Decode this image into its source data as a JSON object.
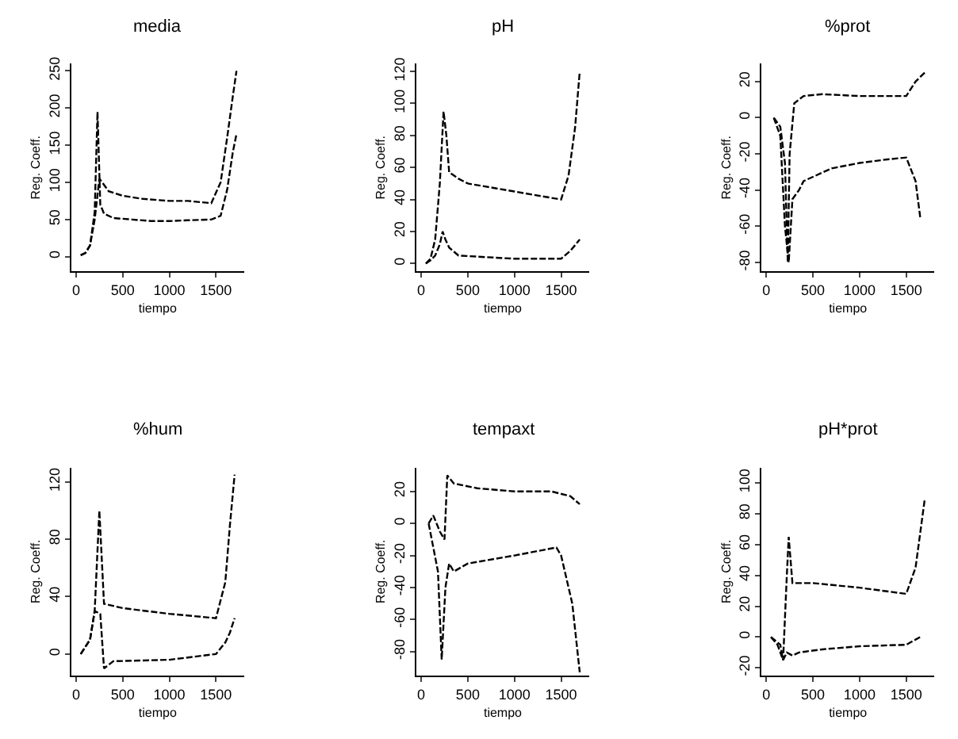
{
  "chart_data": [
    {
      "type": "line",
      "title": "media",
      "xlabel": "tiempo",
      "ylabel": "Reg. Coeff.",
      "line_style": "dashed",
      "xlim": [
        -50,
        1800
      ],
      "xticks": [
        0,
        500,
        1000,
        1500
      ],
      "ylim": [
        -20,
        260
      ],
      "yticks": [
        0,
        50,
        100,
        150,
        200,
        250
      ],
      "series": [
        {
          "color": "#000000",
          "x": [
            50,
            100,
            150,
            200,
            230,
            260,
            300,
            400,
            600,
            800,
            1000,
            1200,
            1450,
            1550,
            1620,
            1680,
            1720
          ],
          "values": [
            2,
            5,
            15,
            60,
            195,
            70,
            58,
            52,
            50,
            48,
            48,
            49,
            50,
            55,
            90,
            140,
            165
          ]
        },
        {
          "color": "#000000",
          "x": [
            50,
            100,
            150,
            200,
            250,
            280,
            350,
            500,
            700,
            1000,
            1200,
            1450,
            1550,
            1620,
            1680,
            1720
          ],
          "values": [
            2,
            5,
            15,
            50,
            105,
            100,
            88,
            82,
            78,
            75,
            75,
            72,
            100,
            160,
            215,
            250
          ]
        }
      ]
    },
    {
      "type": "line",
      "title": "pH",
      "xlabel": "tiempo",
      "ylabel": "Reg. Coeff.",
      "line_style": "dashed",
      "xlim": [
        -50,
        1800
      ],
      "xticks": [
        0,
        500,
        1000,
        1500
      ],
      "ylim": [
        -5,
        125
      ],
      "yticks": [
        0,
        20,
        40,
        60,
        80,
        100,
        120
      ],
      "series": [
        {
          "color": "#000000",
          "x": [
            50,
            100,
            150,
            200,
            240,
            270,
            300,
            400,
            500,
            800,
            1000,
            1300,
            1500,
            1580,
            1650,
            1700
          ],
          "values": [
            0,
            3,
            15,
            50,
            95,
            80,
            57,
            53,
            50,
            47,
            45,
            42,
            40,
            55,
            85,
            120
          ]
        },
        {
          "color": "#000000",
          "x": [
            50,
            100,
            150,
            200,
            230,
            260,
            300,
            400,
            700,
            1000,
            1300,
            1500,
            1600,
            1700
          ],
          "values": [
            0,
            2,
            5,
            12,
            20,
            15,
            10,
            5,
            4,
            3,
            3,
            3,
            8,
            15
          ]
        }
      ]
    },
    {
      "type": "line",
      "title": "%prot",
      "xlabel": "tiempo",
      "ylabel": "Reg. Coeff.",
      "line_style": "dashed",
      "xlim": [
        -50,
        1800
      ],
      "xticks": [
        0,
        500,
        1000,
        1500
      ],
      "ylim": [
        -85,
        30
      ],
      "yticks": [
        -80,
        -60,
        -40,
        -20,
        0,
        20
      ],
      "series": [
        {
          "color": "#000000",
          "x": [
            80,
            150,
            200,
            230,
            250,
            300,
            400,
            600,
            1000,
            1300,
            1500,
            1600,
            1700
          ],
          "values": [
            0,
            -5,
            -25,
            -80,
            -20,
            8,
            12,
            13,
            12,
            12,
            12,
            20,
            25
          ]
        },
        {
          "color": "#000000",
          "x": [
            80,
            150,
            200,
            240,
            280,
            350,
            400,
            700,
            1000,
            1300,
            1500,
            1600,
            1650
          ],
          "values": [
            0,
            -10,
            -60,
            -80,
            -45,
            -40,
            -35,
            -28,
            -25,
            -23,
            -22,
            -35,
            -55
          ]
        }
      ]
    },
    {
      "type": "line",
      "title": "%hum",
      "xlabel": "tiempo",
      "ylabel": "Reg. Coeff.",
      "line_style": "dashed",
      "xlim": [
        -50,
        1800
      ],
      "xticks": [
        0,
        500,
        1000,
        1500
      ],
      "ylim": [
        -15,
        130
      ],
      "yticks": [
        0,
        40,
        80,
        120
      ],
      "series": [
        {
          "color": "#000000",
          "x": [
            50,
            150,
            200,
            250,
            300,
            500,
            1000,
            1500,
            1600,
            1650,
            1700
          ],
          "values": [
            0,
            10,
            30,
            100,
            35,
            32,
            28,
            25,
            50,
            90,
            125
          ]
        },
        {
          "color": "#000000",
          "x": [
            50,
            100,
            150,
            200,
            260,
            300,
            400,
            1000,
            1500,
            1600,
            1650,
            1700
          ],
          "values": [
            0,
            5,
            10,
            30,
            28,
            -10,
            -5,
            -4,
            0,
            8,
            15,
            25
          ]
        }
      ]
    },
    {
      "type": "line",
      "title": "tempaxt",
      "xlabel": "tiempo",
      "ylabel": "Reg. Coeff.",
      "line_style": "dashed",
      "xlim": [
        -50,
        1800
      ],
      "xticks": [
        0,
        500,
        1000,
        1500
      ],
      "ylim": [
        -95,
        35
      ],
      "yticks": [
        -80,
        -60,
        -40,
        -20,
        0,
        20
      ],
      "series": [
        {
          "color": "#000000",
          "x": [
            80,
            130,
            200,
            250,
            280,
            350,
            600,
            1000,
            1400,
            1600,
            1700
          ],
          "values": [
            0,
            5,
            -5,
            -10,
            30,
            25,
            22,
            20,
            20,
            17,
            12
          ]
        },
        {
          "color": "#000000",
          "x": [
            80,
            180,
            220,
            260,
            300,
            350,
            500,
            1000,
            1450,
            1500,
            1620,
            1700
          ],
          "values": [
            0,
            -30,
            -85,
            -40,
            -25,
            -30,
            -25,
            -20,
            -15,
            -20,
            -50,
            -93
          ]
        }
      ]
    },
    {
      "type": "line",
      "title": "pH*prot",
      "xlabel": "tiempo",
      "ylabel": "Reg. Coeff.",
      "line_style": "dashed",
      "xlim": [
        -50,
        1800
      ],
      "xticks": [
        0,
        500,
        1000,
        1500
      ],
      "ylim": [
        -25,
        110
      ],
      "yticks": [
        -20,
        0,
        20,
        40,
        60,
        80,
        100
      ],
      "series": [
        {
          "color": "#000000",
          "x": [
            50,
            150,
            180,
            220,
            240,
            280,
            500,
            1000,
            1500,
            1600,
            1700
          ],
          "values": [
            0,
            -5,
            -15,
            40,
            65,
            35,
            35,
            32,
            28,
            45,
            90
          ]
        },
        {
          "color": "#000000",
          "x": [
            50,
            120,
            180,
            220,
            280,
            350,
            600,
            1000,
            1500,
            1650
          ],
          "values": [
            0,
            -5,
            -15,
            -10,
            -12,
            -10,
            -8,
            -6,
            -5,
            0
          ]
        }
      ]
    }
  ]
}
